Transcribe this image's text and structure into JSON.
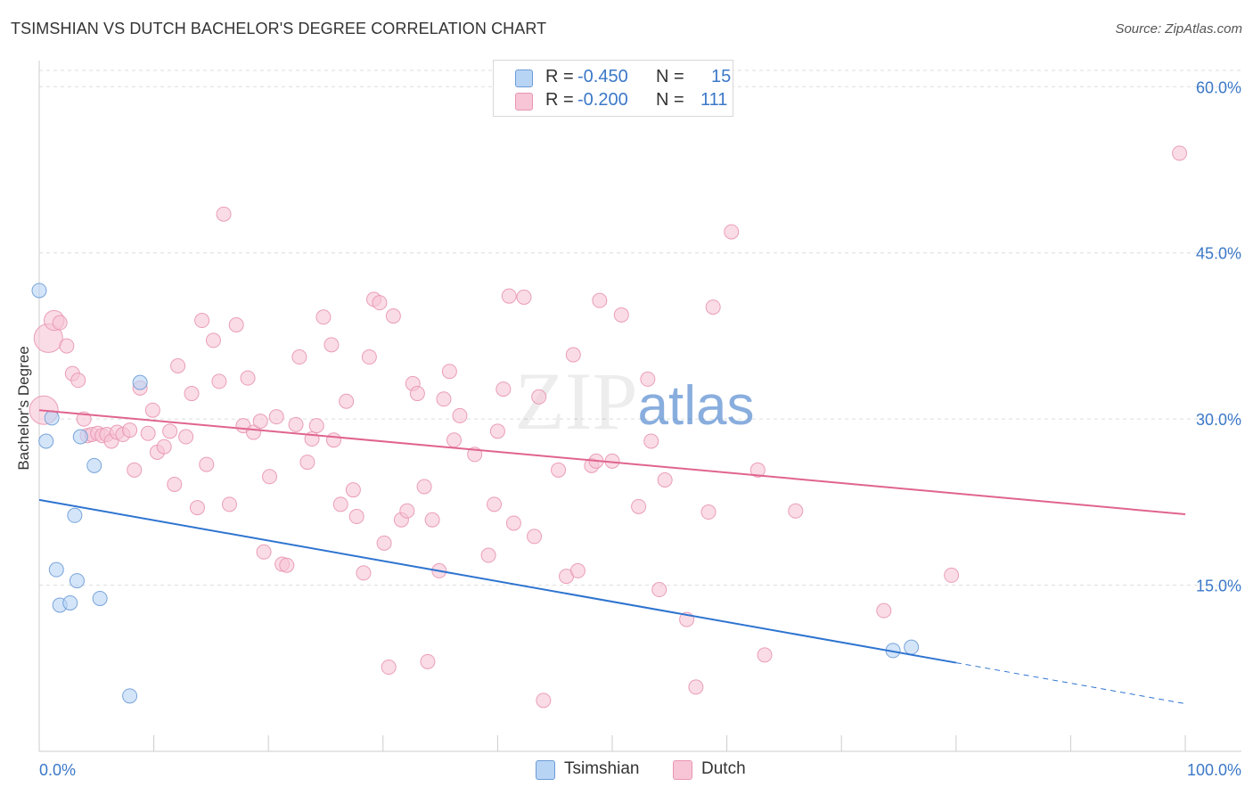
{
  "title": "TSIMSHIAN VS DUTCH BACHELOR'S DEGREE CORRELATION CHART",
  "source": "Source: ZipAtlas.com",
  "watermark": "ZIPatlas",
  "legend": {
    "rows": [
      {
        "r_label": "R =",
        "r_value": "-0.450",
        "n_label": "N =",
        "n_value": "15"
      },
      {
        "r_label": "R =",
        "r_value": "-0.200",
        "n_label": "N =",
        "n_value": "111"
      }
    ]
  },
  "bottom_legend": [
    "Tsimshian",
    "Dutch"
  ],
  "colors": {
    "tsimshian_fill": "#b8d4f5",
    "tsimshian_stroke": "#6b9bd6",
    "tsimshian_line": "#2e74d0",
    "dutch_fill": "#f7c5d5",
    "dutch_stroke": "#e895b3",
    "dutch_line": "#e0648f",
    "tick_text": "#3b78c8",
    "grid": "#dddddd"
  },
  "chart_data": {
    "type": "scatter",
    "title": "TSIMSHIAN VS DUTCH BACHELOR'S DEGREE CORRELATION CHART",
    "xlabel": "",
    "ylabel": "Bachelor's Degree",
    "xlim": [
      0,
      100
    ],
    "ylim": [
      0,
      63
    ],
    "x_tick_labels": [
      "0.0%",
      "100.0%"
    ],
    "y_ticks": [
      15,
      30,
      45,
      60
    ],
    "y_tick_labels": [
      "15.0%",
      "30.0%",
      "45.0%",
      "60.0%"
    ],
    "grid": true,
    "series": [
      {
        "name": "Tsimshian",
        "r": -0.45,
        "n": 15,
        "trend": {
          "x0": 0,
          "y0": 22.7,
          "x1": 80,
          "y1": 8.0,
          "dashed_to_x": 100,
          "dashed_to_y": 4.3
        },
        "points": [
          [
            0.0,
            41.6,
            1
          ],
          [
            0.6,
            28.0,
            1
          ],
          [
            1.1,
            30.1,
            1
          ],
          [
            1.5,
            16.4,
            1
          ],
          [
            1.8,
            13.2,
            1
          ],
          [
            2.7,
            13.4,
            1
          ],
          [
            3.1,
            21.3,
            1
          ],
          [
            3.3,
            15.4,
            1
          ],
          [
            3.6,
            28.4,
            1
          ],
          [
            4.8,
            25.8,
            1
          ],
          [
            5.3,
            13.8,
            1
          ],
          [
            7.9,
            5.0,
            1
          ],
          [
            8.8,
            33.3,
            1
          ],
          [
            74.5,
            9.1,
            1
          ],
          [
            76.1,
            9.4,
            1
          ]
        ]
      },
      {
        "name": "Dutch",
        "r": -0.2,
        "n": 111,
        "trend": {
          "x0": 0,
          "y0": 30.8,
          "x1": 100,
          "y1": 21.4
        },
        "points": [
          [
            0.4,
            30.8,
            2
          ],
          [
            0.8,
            37.3,
            2
          ],
          [
            1.3,
            38.9,
            1.4
          ],
          [
            1.8,
            38.7,
            1
          ],
          [
            2.4,
            36.6,
            1
          ],
          [
            2.9,
            34.1,
            1
          ],
          [
            3.4,
            33.5,
            1
          ],
          [
            3.9,
            30.0,
            1
          ],
          [
            4.2,
            28.5,
            1
          ],
          [
            4.6,
            28.6,
            1
          ],
          [
            5.1,
            28.7,
            1
          ],
          [
            5.5,
            28.5,
            1
          ],
          [
            5.9,
            28.6,
            1
          ],
          [
            6.3,
            28.0,
            1
          ],
          [
            6.8,
            28.8,
            1
          ],
          [
            7.3,
            28.6,
            1
          ],
          [
            7.9,
            29.0,
            1
          ],
          [
            8.3,
            25.4,
            1
          ],
          [
            8.8,
            32.8,
            1
          ],
          [
            9.5,
            28.7,
            1
          ],
          [
            9.9,
            30.8,
            1
          ],
          [
            10.3,
            27.0,
            1
          ],
          [
            10.9,
            27.5,
            1
          ],
          [
            11.4,
            28.9,
            1
          ],
          [
            11.8,
            24.1,
            1
          ],
          [
            12.1,
            34.8,
            1
          ],
          [
            12.8,
            28.4,
            1
          ],
          [
            13.3,
            32.3,
            1
          ],
          [
            13.8,
            22.0,
            1
          ],
          [
            14.2,
            38.9,
            1
          ],
          [
            14.6,
            25.9,
            1
          ],
          [
            15.2,
            37.1,
            1
          ],
          [
            15.7,
            33.4,
            1
          ],
          [
            16.1,
            48.5,
            1
          ],
          [
            16.6,
            22.3,
            1
          ],
          [
            17.2,
            38.5,
            1
          ],
          [
            17.8,
            29.4,
            1
          ],
          [
            18.2,
            33.7,
            1
          ],
          [
            18.7,
            28.8,
            1
          ],
          [
            19.3,
            29.8,
            1
          ],
          [
            19.6,
            18.0,
            1
          ],
          [
            20.1,
            24.8,
            1
          ],
          [
            20.7,
            30.2,
            1
          ],
          [
            21.2,
            16.9,
            1
          ],
          [
            21.6,
            16.8,
            1
          ],
          [
            22.4,
            29.5,
            1
          ],
          [
            22.7,
            35.6,
            1
          ],
          [
            23.4,
            26.1,
            1
          ],
          [
            23.8,
            28.2,
            1
          ],
          [
            24.2,
            29.4,
            1
          ],
          [
            24.8,
            39.2,
            1
          ],
          [
            25.5,
            36.7,
            1
          ],
          [
            25.7,
            28.1,
            1
          ],
          [
            26.3,
            22.3,
            1
          ],
          [
            26.8,
            31.6,
            1
          ],
          [
            27.4,
            23.6,
            1
          ],
          [
            27.7,
            21.2,
            1
          ],
          [
            28.3,
            16.1,
            1
          ],
          [
            28.8,
            35.6,
            1
          ],
          [
            29.2,
            40.8,
            1
          ],
          [
            29.7,
            40.5,
            1
          ],
          [
            30.1,
            18.8,
            1
          ],
          [
            30.5,
            7.6,
            1
          ],
          [
            30.9,
            39.3,
            1
          ],
          [
            31.6,
            20.9,
            1
          ],
          [
            32.1,
            21.7,
            1
          ],
          [
            32.6,
            33.2,
            1
          ],
          [
            33.0,
            32.3,
            1
          ],
          [
            33.6,
            23.9,
            1
          ],
          [
            33.9,
            8.1,
            1
          ],
          [
            34.3,
            20.9,
            1
          ],
          [
            34.9,
            16.3,
            1
          ],
          [
            35.3,
            31.8,
            1
          ],
          [
            35.8,
            34.3,
            1
          ],
          [
            36.2,
            28.1,
            1
          ],
          [
            36.7,
            30.3,
            1
          ],
          [
            38.0,
            26.8,
            1
          ],
          [
            39.2,
            17.7,
            1
          ],
          [
            39.7,
            22.3,
            1
          ],
          [
            40.0,
            28.9,
            1
          ],
          [
            40.5,
            32.7,
            1
          ],
          [
            41.0,
            41.1,
            1
          ],
          [
            41.4,
            20.6,
            1
          ],
          [
            42.3,
            41.0,
            1
          ],
          [
            43.2,
            19.4,
            1
          ],
          [
            43.6,
            32.0,
            1
          ],
          [
            44.0,
            4.6,
            1
          ],
          [
            45.3,
            25.4,
            1
          ],
          [
            46.0,
            15.8,
            1
          ],
          [
            46.6,
            35.8,
            1
          ],
          [
            47.0,
            16.3,
            1
          ],
          [
            48.2,
            25.8,
            1
          ],
          [
            48.6,
            26.2,
            1
          ],
          [
            48.9,
            40.7,
            1
          ],
          [
            50.0,
            26.2,
            1
          ],
          [
            50.8,
            39.4,
            1
          ],
          [
            52.3,
            22.1,
            1
          ],
          [
            53.1,
            33.6,
            1
          ],
          [
            53.4,
            28.0,
            1
          ],
          [
            54.1,
            14.6,
            1
          ],
          [
            54.6,
            24.5,
            1
          ],
          [
            56.5,
            11.9,
            1
          ],
          [
            57.3,
            5.8,
            1
          ],
          [
            58.4,
            21.6,
            1
          ],
          [
            58.8,
            40.1,
            1
          ],
          [
            60.4,
            46.9,
            1
          ],
          [
            62.7,
            25.4,
            1
          ],
          [
            63.3,
            8.7,
            1
          ],
          [
            66.0,
            21.7,
            1
          ],
          [
            73.7,
            12.7,
            1
          ],
          [
            79.6,
            15.9,
            1
          ],
          [
            99.5,
            54.0,
            1
          ]
        ]
      }
    ]
  }
}
